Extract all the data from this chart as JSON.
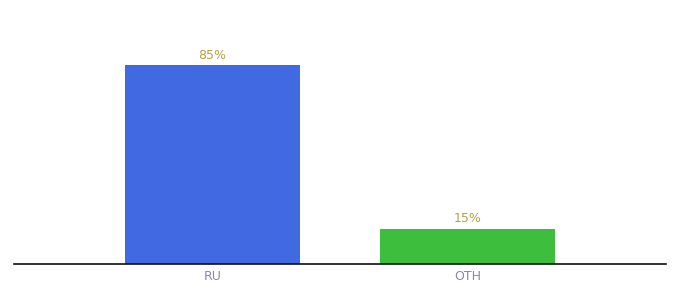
{
  "categories": [
    "RU",
    "OTH"
  ],
  "values": [
    85,
    15
  ],
  "bar_colors": [
    "#4169e1",
    "#3dbe3d"
  ],
  "label_texts": [
    "85%",
    "15%"
  ],
  "label_color": "#b8a040",
  "ylim": [
    0,
    100
  ],
  "background_color": "#ffffff",
  "bar_width": 0.22,
  "label_fontsize": 9,
  "tick_fontsize": 9,
  "tick_color": "#8888aa",
  "axis_line_color": "#111111",
  "figsize": [
    6.8,
    3.0
  ],
  "dpi": 100,
  "x_positions": [
    0.3,
    0.62
  ],
  "xlim": [
    0.05,
    0.87
  ]
}
